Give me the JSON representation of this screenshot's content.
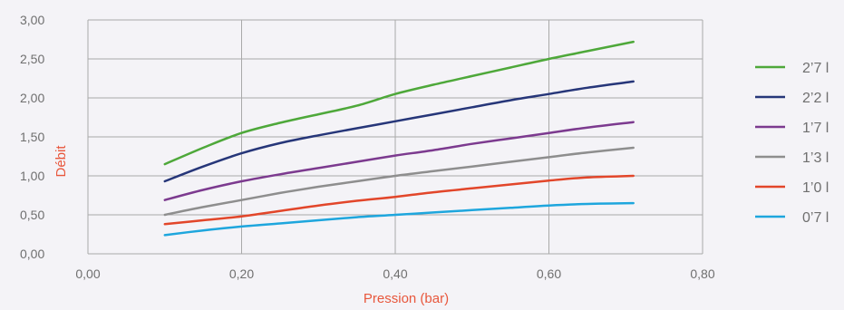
{
  "chart_data": {
    "type": "line",
    "title": "",
    "xlabel": "Pression  (bar)",
    "ylabel": "Débit",
    "xlim": [
      0,
      0.8
    ],
    "ylim": [
      0,
      3
    ],
    "x_ticks": [
      0,
      0.2,
      0.4,
      0.6,
      0.8
    ],
    "y_ticks": [
      0,
      0.5,
      1,
      1.5,
      2,
      2.5,
      3
    ],
    "x_tick_labels": [
      "0,00",
      "0,20",
      "0,40",
      "0,60",
      "0,80"
    ],
    "y_tick_labels": [
      "0,00",
      "0,50",
      "1,00",
      "1,50",
      "2,00",
      "2,50",
      "3,00"
    ],
    "grid": true,
    "legend_position": "right",
    "axis_title_color": "#e8573c",
    "series": [
      {
        "name": "2’7 l",
        "color": "#4ea83a",
        "x": [
          0.1,
          0.15,
          0.2,
          0.25,
          0.3,
          0.35,
          0.4,
          0.45,
          0.5,
          0.55,
          0.6,
          0.65,
          0.71
        ],
        "y": [
          1.15,
          1.36,
          1.55,
          1.68,
          1.79,
          1.9,
          2.05,
          2.17,
          2.28,
          2.39,
          2.5,
          2.6,
          2.72
        ]
      },
      {
        "name": "2’2 l",
        "color": "#263679",
        "x": [
          0.1,
          0.15,
          0.2,
          0.25,
          0.3,
          0.35,
          0.4,
          0.45,
          0.5,
          0.55,
          0.6,
          0.65,
          0.71
        ],
        "y": [
          0.93,
          1.12,
          1.29,
          1.42,
          1.52,
          1.61,
          1.7,
          1.79,
          1.88,
          1.97,
          2.05,
          2.13,
          2.21
        ]
      },
      {
        "name": "1’7 l",
        "color": "#7c3a8f",
        "x": [
          0.1,
          0.15,
          0.2,
          0.25,
          0.3,
          0.35,
          0.4,
          0.45,
          0.5,
          0.55,
          0.6,
          0.65,
          0.71
        ],
        "y": [
          0.69,
          0.82,
          0.93,
          1.02,
          1.1,
          1.18,
          1.26,
          1.33,
          1.41,
          1.48,
          1.55,
          1.62,
          1.69
        ]
      },
      {
        "name": "1’3 l",
        "color": "#8e8e8e",
        "x": [
          0.1,
          0.15,
          0.2,
          0.25,
          0.3,
          0.35,
          0.4,
          0.45,
          0.5,
          0.55,
          0.6,
          0.65,
          0.71
        ],
        "y": [
          0.5,
          0.6,
          0.69,
          0.78,
          0.86,
          0.93,
          1.0,
          1.06,
          1.12,
          1.18,
          1.24,
          1.3,
          1.36
        ]
      },
      {
        "name": "1’0 l",
        "color": "#e2462a",
        "x": [
          0.1,
          0.15,
          0.2,
          0.25,
          0.3,
          0.35,
          0.4,
          0.45,
          0.5,
          0.55,
          0.6,
          0.65,
          0.71
        ],
        "y": [
          0.38,
          0.43,
          0.48,
          0.55,
          0.62,
          0.68,
          0.73,
          0.79,
          0.84,
          0.89,
          0.94,
          0.98,
          1.0
        ]
      },
      {
        "name": "0’7 l",
        "color": "#1ea6dd",
        "x": [
          0.1,
          0.15,
          0.2,
          0.25,
          0.3,
          0.35,
          0.4,
          0.45,
          0.5,
          0.55,
          0.6,
          0.65,
          0.71
        ],
        "y": [
          0.24,
          0.3,
          0.35,
          0.39,
          0.43,
          0.47,
          0.5,
          0.53,
          0.56,
          0.59,
          0.62,
          0.64,
          0.65
        ]
      }
    ]
  }
}
